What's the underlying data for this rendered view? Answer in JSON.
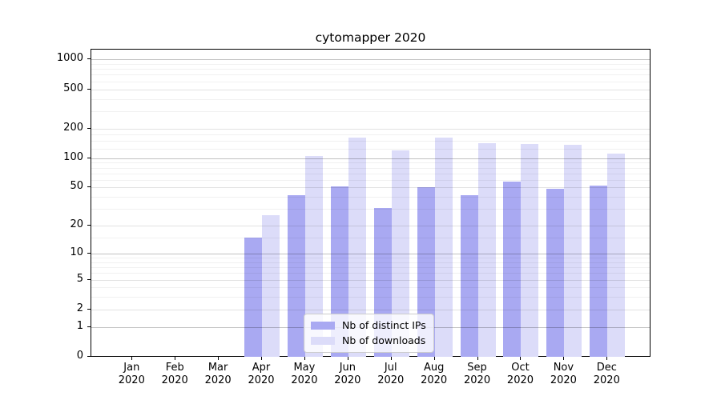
{
  "chart_data": {
    "type": "bar",
    "title": "cytomapper 2020",
    "categories": [
      "Jan",
      "Feb",
      "Mar",
      "Apr",
      "May",
      "Jun",
      "Jul",
      "Aug",
      "Sep",
      "Oct",
      "Nov",
      "Dec"
    ],
    "category_year": "2020",
    "series": [
      {
        "name": "Nb of distinct IPs",
        "color": "#a9a9f2",
        "values": [
          0,
          0,
          0,
          15,
          42,
          51,
          31,
          50,
          42,
          58,
          49,
          52
        ]
      },
      {
        "name": "Nb of downloads",
        "color": "#dcdcf9",
        "values": [
          0,
          0,
          0,
          26,
          106,
          161,
          119,
          161,
          142,
          139,
          138,
          111
        ]
      }
    ],
    "xlabel": "",
    "ylabel": "",
    "y_axis": {
      "scale": "log10(value+1)",
      "ylim": [
        0,
        1300
      ],
      "tick_values": [
        1000,
        500,
        200,
        100,
        50,
        20,
        10,
        5,
        2,
        1,
        0
      ],
      "tick_labels": [
        "1000",
        "500",
        "200",
        "100",
        "50",
        "20",
        "10",
        "5",
        "2",
        "1",
        "0"
      ],
      "grid_major_values": [
        1,
        10,
        100,
        1000
      ],
      "grid_mid_values": [
        2,
        5,
        20,
        50,
        200,
        500
      ],
      "grid_minor_values": [
        3,
        4,
        6,
        7,
        8,
        9,
        15,
        30,
        40,
        60,
        70,
        80,
        90,
        125,
        150,
        175,
        300,
        400,
        600,
        700,
        800,
        900
      ]
    },
    "legend_position": "lower-center",
    "grid": true,
    "plot_bg": "#ffffff",
    "text_color": "#000000"
  }
}
